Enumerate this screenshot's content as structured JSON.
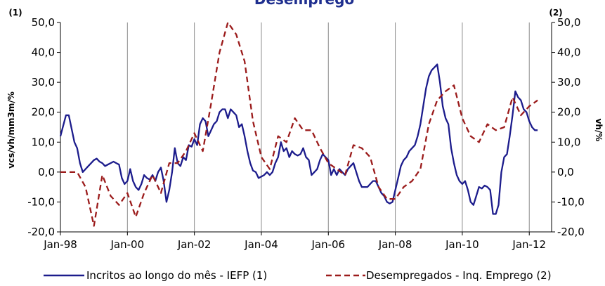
{
  "chart_data": {
    "type": "line",
    "title": "Desemprego",
    "ylabel_left": "vcs/vh/mm3m/%",
    "ylabel_right": "vh/%",
    "left_axis_marker": "(1)",
    "right_axis_marker": "(2)",
    "x_tick_labels": [
      "Jan-98",
      "Jan-00",
      "Jan-02",
      "Jan-04",
      "Jan-06",
      "Jan-08",
      "Jan-10",
      "Jan-12"
    ],
    "y_tick_labels_left": [
      "50,0",
      "40,0",
      "30,0",
      "20,0",
      "10,0",
      "0,0",
      "-10,0",
      "-20,0"
    ],
    "y_tick_labels_right": [
      "50,0",
      "40,0",
      "30,0",
      "20,0",
      "10,0",
      "0,0",
      "-10,0",
      "-20,0"
    ],
    "ylim": [
      -20,
      50
    ],
    "xlim": [
      "1998-01",
      "2012-09"
    ],
    "grid": "vertical lines at every second January",
    "legend_position": "bottom",
    "colors": {
      "series1": "#1c1c8c",
      "series2": "#9b1b1b",
      "title": "#1f2f8f",
      "grid": "#8c8c8c"
    },
    "series": [
      {
        "name": "Incritos ao longo do mês - IEFP (1)",
        "axis": "left",
        "style": "solid",
        "points": [
          [
            "1998-01",
            12
          ],
          [
            "1998-03",
            19
          ],
          [
            "1998-04",
            19
          ],
          [
            "1998-06",
            10
          ],
          [
            "1998-07",
            8
          ],
          [
            "1998-08",
            3
          ],
          [
            "1998-09",
            0
          ],
          [
            "1998-10",
            1
          ],
          [
            "1998-11",
            2
          ],
          [
            "1998-12",
            3
          ],
          [
            "1999-01",
            4
          ],
          [
            "1999-02",
            4.5
          ],
          [
            "1999-03",
            3.5
          ],
          [
            "1999-04",
            3
          ],
          [
            "1999-05",
            2
          ],
          [
            "1999-06",
            2.5
          ],
          [
            "1999-07",
            3
          ],
          [
            "1999-08",
            3.5
          ],
          [
            "1999-09",
            3
          ],
          [
            "1999-10",
            2.5
          ],
          [
            "1999-11",
            -2
          ],
          [
            "1999-12",
            -4
          ],
          [
            "2000-01",
            -3
          ],
          [
            "2000-02",
            1
          ],
          [
            "2000-03",
            -3
          ],
          [
            "2000-04",
            -5
          ],
          [
            "2000-05",
            -6
          ],
          [
            "2000-06",
            -4
          ],
          [
            "2000-07",
            -1
          ],
          [
            "2000-08",
            -2
          ],
          [
            "2000-09",
            -2.5
          ],
          [
            "2000-10",
            -1
          ],
          [
            "2000-11",
            -3
          ],
          [
            "2000-12",
            0
          ],
          [
            "2001-01",
            1.5
          ],
          [
            "2001-02",
            -3
          ],
          [
            "2001-03",
            -10
          ],
          [
            "2001-04",
            -6
          ],
          [
            "2001-05",
            0
          ],
          [
            "2001-06",
            8
          ],
          [
            "2001-07",
            3
          ],
          [
            "2001-08",
            2
          ],
          [
            "2001-09",
            5
          ],
          [
            "2001-10",
            4
          ],
          [
            "2001-11",
            9
          ],
          [
            "2001-12",
            8.5
          ],
          [
            "2002-01",
            11
          ],
          [
            "2002-02",
            9
          ],
          [
            "2002-03",
            16
          ],
          [
            "2002-04",
            18
          ],
          [
            "2002-05",
            17
          ],
          [
            "2002-06",
            12
          ],
          [
            "2002-07",
            14
          ],
          [
            "2002-08",
            16
          ],
          [
            "2002-09",
            17
          ],
          [
            "2002-10",
            20
          ],
          [
            "2002-11",
            21
          ],
          [
            "2002-12",
            21
          ],
          [
            "2003-01",
            18
          ],
          [
            "2003-02",
            21
          ],
          [
            "2003-03",
            20
          ],
          [
            "2003-04",
            19
          ],
          [
            "2003-05",
            15
          ],
          [
            "2003-06",
            16
          ],
          [
            "2003-07",
            12
          ],
          [
            "2003-08",
            7
          ],
          [
            "2003-09",
            3
          ],
          [
            "2003-10",
            0.5
          ],
          [
            "2003-11",
            0
          ],
          [
            "2003-12",
            -2
          ],
          [
            "2004-01",
            -1.5
          ],
          [
            "2004-02",
            -1
          ],
          [
            "2004-03",
            0
          ],
          [
            "2004-04",
            -1
          ],
          [
            "2004-05",
            0
          ],
          [
            "2004-06",
            3
          ],
          [
            "2004-07",
            5
          ],
          [
            "2004-08",
            10
          ],
          [
            "2004-09",
            7
          ],
          [
            "2004-10",
            8
          ],
          [
            "2004-11",
            5
          ],
          [
            "2004-12",
            7
          ],
          [
            "2005-01",
            6
          ],
          [
            "2005-02",
            5.5
          ],
          [
            "2005-03",
            6
          ],
          [
            "2005-04",
            8
          ],
          [
            "2005-05",
            5
          ],
          [
            "2005-06",
            4
          ],
          [
            "2005-07",
            -1
          ],
          [
            "2005-08",
            0
          ],
          [
            "2005-09",
            1
          ],
          [
            "2005-10",
            4
          ],
          [
            "2005-11",
            6
          ],
          [
            "2005-12",
            5
          ],
          [
            "2006-01",
            4
          ],
          [
            "2006-02",
            -1
          ],
          [
            "2006-03",
            1
          ],
          [
            "2006-04",
            -1
          ],
          [
            "2006-05",
            1
          ],
          [
            "2006-06",
            0
          ],
          [
            "2006-07",
            -1
          ],
          [
            "2006-08",
            1
          ],
          [
            "2006-09",
            2
          ],
          [
            "2006-10",
            3
          ],
          [
            "2006-11",
            0
          ],
          [
            "2006-12",
            -3
          ],
          [
            "2007-01",
            -5
          ],
          [
            "2007-02",
            -5
          ],
          [
            "2007-03",
            -5
          ],
          [
            "2007-04",
            -4
          ],
          [
            "2007-05",
            -3
          ],
          [
            "2007-06",
            -3
          ],
          [
            "2007-07",
            -5
          ],
          [
            "2007-08",
            -7
          ],
          [
            "2007-09",
            -8
          ],
          [
            "2007-10",
            -10
          ],
          [
            "2007-11",
            -10.5
          ],
          [
            "2007-12",
            -10
          ],
          [
            "2008-01",
            -6
          ],
          [
            "2008-02",
            -2
          ],
          [
            "2008-03",
            2
          ],
          [
            "2008-04",
            4
          ],
          [
            "2008-05",
            5
          ],
          [
            "2008-06",
            7
          ],
          [
            "2008-07",
            8
          ],
          [
            "2008-08",
            9
          ],
          [
            "2008-09",
            12
          ],
          [
            "2008-10",
            16
          ],
          [
            "2008-11",
            22
          ],
          [
            "2008-12",
            28
          ],
          [
            "2009-01",
            32
          ],
          [
            "2009-02",
            34
          ],
          [
            "2009-03",
            35
          ],
          [
            "2009-04",
            36
          ],
          [
            "2009-05",
            30
          ],
          [
            "2009-06",
            22
          ],
          [
            "2009-07",
            18
          ],
          [
            "2009-08",
            16
          ],
          [
            "2009-09",
            8
          ],
          [
            "2009-10",
            3
          ],
          [
            "2009-11",
            -1
          ],
          [
            "2009-12",
            -3
          ],
          [
            "2010-01",
            -4
          ],
          [
            "2010-02",
            -3
          ],
          [
            "2010-03",
            -6
          ],
          [
            "2010-04",
            -10
          ],
          [
            "2010-05",
            -11
          ],
          [
            "2010-06",
            -8
          ],
          [
            "2010-07",
            -5
          ],
          [
            "2010-08",
            -5.5
          ],
          [
            "2010-09",
            -4.5
          ],
          [
            "2010-10",
            -5
          ],
          [
            "2010-11",
            -6
          ],
          [
            "2010-12",
            -14
          ],
          [
            "2011-01",
            -14
          ],
          [
            "2011-02",
            -11
          ],
          [
            "2011-03",
            0
          ],
          [
            "2011-04",
            5
          ],
          [
            "2011-05",
            6
          ],
          [
            "2011-06",
            12
          ],
          [
            "2011-07",
            19
          ],
          [
            "2011-08",
            27
          ],
          [
            "2011-09",
            25
          ],
          [
            "2011-10",
            24
          ],
          [
            "2011-11",
            21
          ],
          [
            "2011-12",
            20
          ],
          [
            "2012-01",
            17
          ],
          [
            "2012-02",
            15
          ],
          [
            "2012-03",
            14
          ],
          [
            "2012-04",
            14
          ]
        ]
      },
      {
        "name": "Desempregados - Inq. Emprego (2)",
        "axis": "right",
        "style": "dashed",
        "points": [
          [
            "1998-01",
            0
          ],
          [
            "1998-04",
            0
          ],
          [
            "1998-07",
            0
          ],
          [
            "1998-10",
            -5
          ],
          [
            "1999-01",
            -18
          ],
          [
            "1999-04",
            -1
          ],
          [
            "1999-07",
            -8
          ],
          [
            "1999-10",
            -11
          ],
          [
            "2000-01",
            -7
          ],
          [
            "2000-04",
            -15
          ],
          [
            "2000-07",
            -7
          ],
          [
            "2000-10",
            -1
          ],
          [
            "2001-01",
            -7
          ],
          [
            "2001-04",
            3
          ],
          [
            "2001-07",
            3
          ],
          [
            "2001-10",
            7
          ],
          [
            "2002-01",
            13
          ],
          [
            "2002-04",
            7
          ],
          [
            "2002-07",
            23
          ],
          [
            "2002-10",
            40
          ],
          [
            "2003-01",
            50
          ],
          [
            "2003-04",
            46
          ],
          [
            "2003-07",
            37
          ],
          [
            "2003-10",
            17
          ],
          [
            "2004-01",
            5
          ],
          [
            "2004-04",
            1
          ],
          [
            "2004-07",
            12
          ],
          [
            "2004-10",
            10
          ],
          [
            "2005-01",
            18
          ],
          [
            "2005-04",
            14
          ],
          [
            "2005-07",
            14
          ],
          [
            "2005-10",
            8
          ],
          [
            "2006-01",
            3
          ],
          [
            "2006-04",
            1
          ],
          [
            "2006-07",
            -1
          ],
          [
            "2006-10",
            9
          ],
          [
            "2007-01",
            8
          ],
          [
            "2007-04",
            5
          ],
          [
            "2007-07",
            -5
          ],
          [
            "2007-10",
            -9
          ],
          [
            "2008-01",
            -9
          ],
          [
            "2008-04",
            -5
          ],
          [
            "2008-07",
            -3
          ],
          [
            "2008-10",
            1
          ],
          [
            "2009-01",
            16
          ],
          [
            "2009-04",
            24
          ],
          [
            "2009-07",
            27
          ],
          [
            "2009-10",
            29
          ],
          [
            "2010-01",
            18
          ],
          [
            "2010-04",
            12
          ],
          [
            "2010-07",
            10
          ],
          [
            "2010-10",
            16
          ],
          [
            "2011-01",
            14
          ],
          [
            "2011-04",
            15
          ],
          [
            "2011-07",
            25
          ],
          [
            "2011-10",
            19
          ],
          [
            "2012-01",
            22
          ],
          [
            "2012-04",
            24
          ]
        ]
      }
    ]
  }
}
